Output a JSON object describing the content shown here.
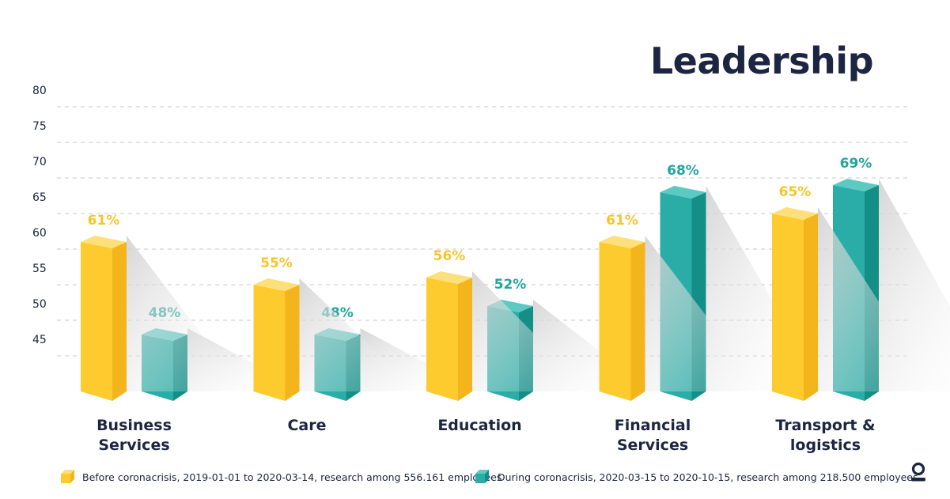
{
  "colors": {
    "before": "#fdcb2e",
    "before_side": "#f4b51c",
    "before_top": "#fde07c",
    "before_label": "#f7c52a",
    "during": "#2bada7",
    "during_side": "#138f88",
    "during_top": "#5ccac3",
    "during_label": "#24a49d",
    "text": "#1c2541",
    "grid": "#c9c9c9"
  },
  "logo_icon": "person-logo-icon",
  "chart_data": {
    "type": "bar",
    "title": "Leadership",
    "categories": [
      [
        "Business",
        "Services"
      ],
      [
        "Care"
      ],
      [
        "Education"
      ],
      [
        "Financial",
        "Services"
      ],
      [
        "Transport &",
        "logistics"
      ]
    ],
    "yticks": [
      "80",
      "75",
      "70",
      "65",
      "60",
      "55",
      "50",
      "45"
    ],
    "ylim": [
      40,
      80
    ],
    "grid": true,
    "legend_position": "bottom",
    "series": [
      {
        "key": "before",
        "name": "Before coronacrisis, 2019-01-01 to 2020-03-14, research among 556.161 employees",
        "values": [
          61,
          55,
          56,
          61,
          65
        ],
        "labels": [
          "61%",
          "55%",
          "56%",
          "61%",
          "65%"
        ]
      },
      {
        "key": "during",
        "name": "During coronacrisis, 2020-03-15 to 2020-10-15, research among 218.500 employees",
        "values": [
          48,
          48,
          52,
          68,
          69
        ],
        "labels": [
          "48%",
          "48%",
          "52%",
          "68%",
          "69%"
        ]
      }
    ]
  }
}
